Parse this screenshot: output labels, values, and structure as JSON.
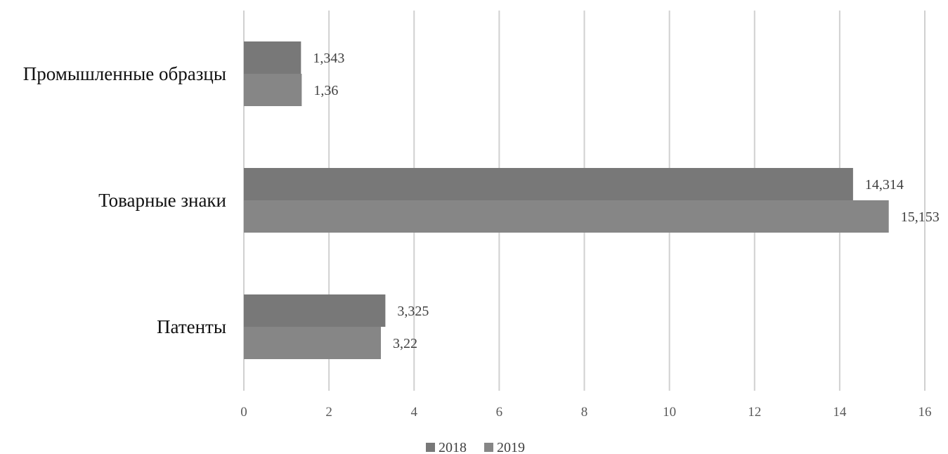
{
  "chart_data": {
    "type": "bar",
    "orientation": "horizontal",
    "categories": [
      "Промышленные образцы",
      "Товарные знаки",
      "Патенты"
    ],
    "series": [
      {
        "name": "2018",
        "color": "#787878",
        "values": [
          1.343,
          14.314,
          3.325
        ],
        "labels": [
          "1,343",
          "14,314",
          "3,325"
        ]
      },
      {
        "name": "2019",
        "color": "#868686",
        "values": [
          1.36,
          15.153,
          3.22
        ],
        "labels": [
          "1,36",
          "15,153",
          "3,22"
        ]
      }
    ],
    "xlim": [
      0,
      16
    ],
    "xticks": [
      0,
      2,
      4,
      6,
      8,
      10,
      12,
      14,
      16
    ],
    "title": "",
    "xlabel": "",
    "ylabel": "",
    "grid": "vertical",
    "legend": "bottom-center"
  }
}
